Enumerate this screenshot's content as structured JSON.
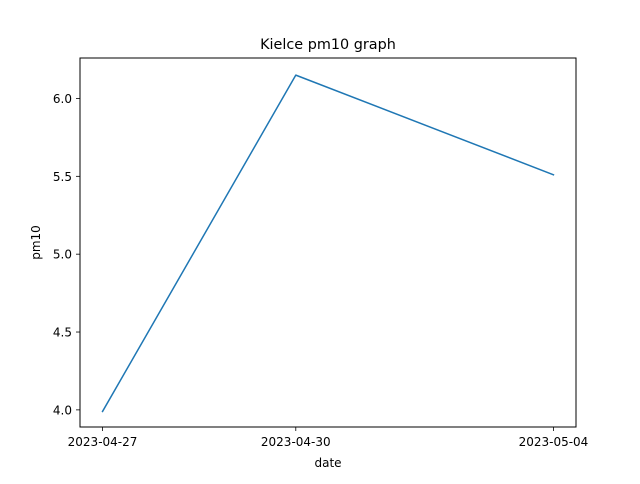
{
  "chart_data": {
    "type": "line",
    "title": "Kielce pm10 graph",
    "xlabel": "date",
    "ylabel": "pm10",
    "x": [
      "2023-04-27",
      "2023-04-30",
      "2023-05-04"
    ],
    "x_tick_labels": [
      "2023-04-27",
      "2023-04-30",
      "2023-05-04"
    ],
    "series": [
      {
        "values": [
          3.99,
          6.15,
          5.51
        ],
        "color": "#1f77b4"
      }
    ],
    "ylim": [
      3.89,
      6.26
    ],
    "y_ticks": [
      4.0,
      4.5,
      5.0,
      5.5,
      6.0
    ],
    "y_tick_labels": [
      "4.0",
      "4.5",
      "5.0",
      "5.5",
      "6.0"
    ],
    "grid": false,
    "legend": "none"
  }
}
